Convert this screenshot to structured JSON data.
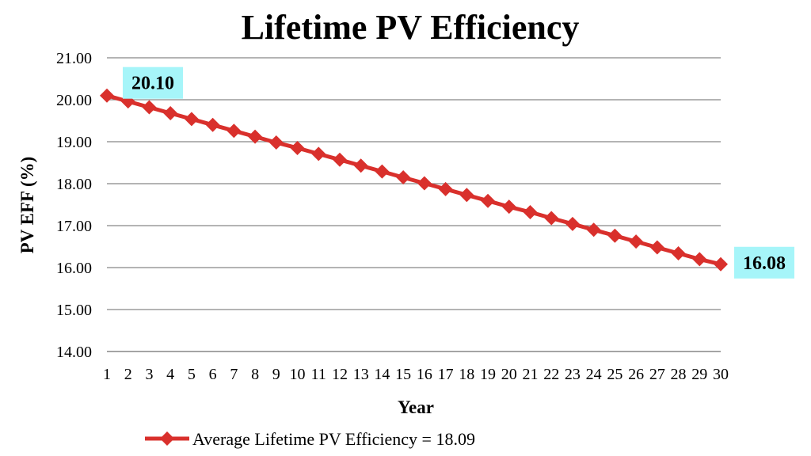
{
  "chart_data": {
    "type": "line",
    "title": "Lifetime PV Efficiency",
    "xlabel": "Year",
    "ylabel": "PV EFF (%)",
    "ylim": [
      14.0,
      21.0
    ],
    "yticks": [
      "14.00",
      "15.00",
      "16.00",
      "17.00",
      "18.00",
      "19.00",
      "20.00",
      "21.00"
    ],
    "grid": true,
    "legend_position": "bottom",
    "x": [
      1,
      2,
      3,
      4,
      5,
      6,
      7,
      8,
      9,
      10,
      11,
      12,
      13,
      14,
      15,
      16,
      17,
      18,
      19,
      20,
      21,
      22,
      23,
      24,
      25,
      26,
      27,
      28,
      29,
      30
    ],
    "series": [
      {
        "name": "Average Lifetime PV Efficiency = 18.09",
        "color": "#d9302c",
        "marker": "diamond",
        "values": [
          20.1,
          19.96,
          19.82,
          19.68,
          19.54,
          19.4,
          19.26,
          19.12,
          18.98,
          18.85,
          18.71,
          18.57,
          18.43,
          18.29,
          18.15,
          18.01,
          17.87,
          17.73,
          17.59,
          17.45,
          17.32,
          17.18,
          17.04,
          16.9,
          16.76,
          16.62,
          16.48,
          16.34,
          16.2,
          16.08
        ]
      }
    ],
    "annotations": [
      {
        "index": 0,
        "text": "20.10",
        "background": "#a6f5f9"
      },
      {
        "index": 29,
        "text": "16.08",
        "background": "#a6f5f9"
      }
    ]
  }
}
